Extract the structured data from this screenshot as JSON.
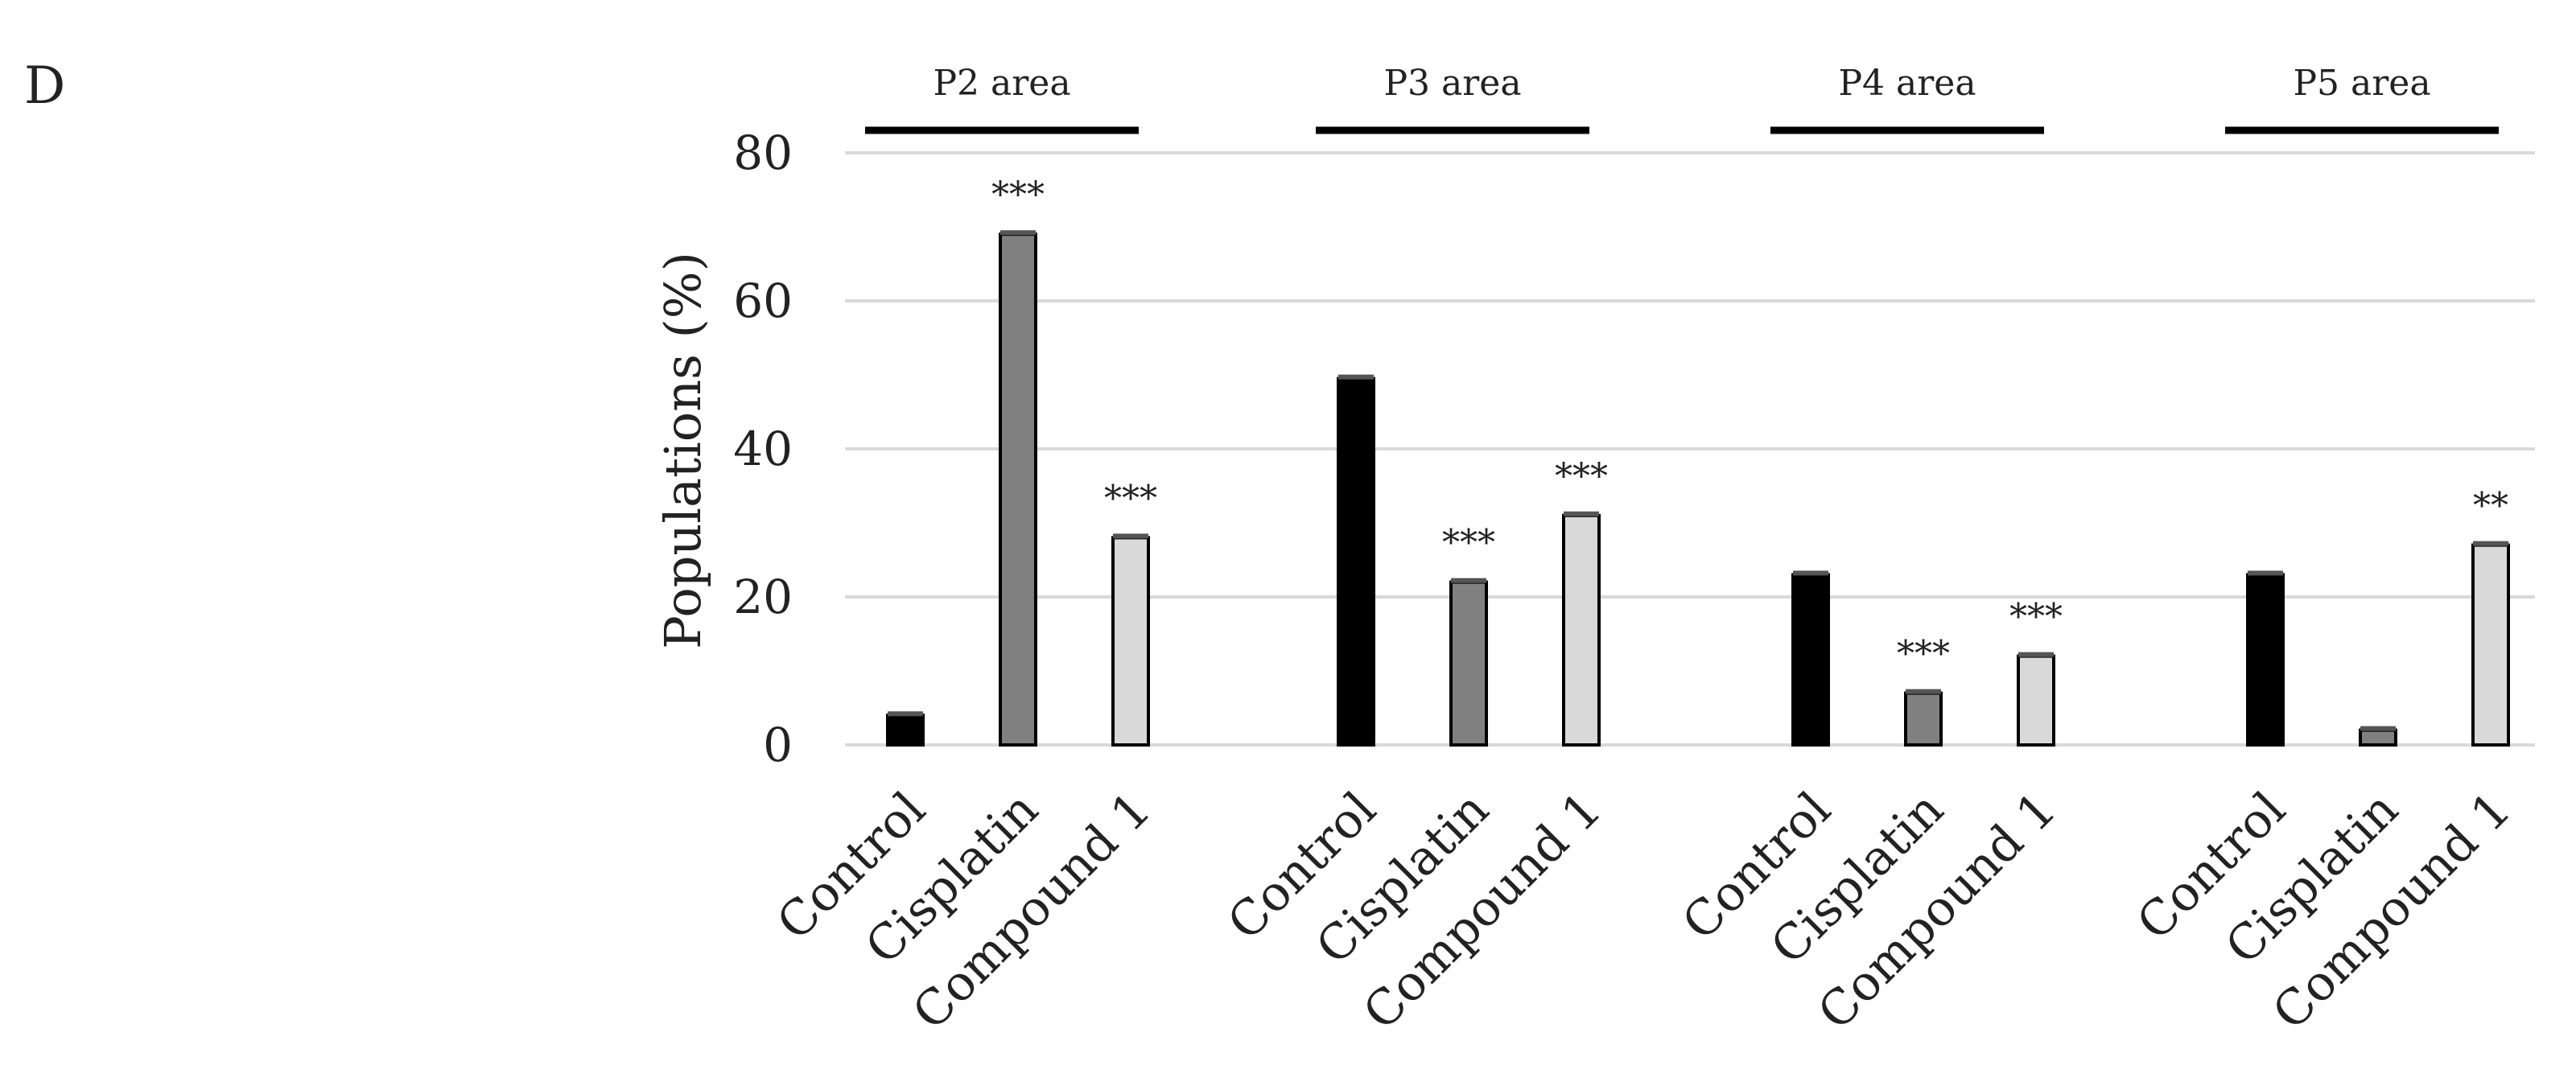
{
  "panel_letter": "D",
  "chart_data": {
    "type": "bar",
    "title": "",
    "xlabel": "",
    "ylabel": "Populations (%)",
    "ylim": [
      0,
      80
    ],
    "yticks": [
      0,
      20,
      40,
      60,
      80
    ],
    "grid": true,
    "groups": [
      {
        "label": "P2 area",
        "bars": [
          {
            "category": "Control",
            "value": 4,
            "significance": ""
          },
          {
            "category": "Cisplatin",
            "value": 69,
            "significance": "***"
          },
          {
            "category": "Compound 1",
            "value": 28,
            "significance": "***"
          }
        ]
      },
      {
        "label": "P3 area",
        "bars": [
          {
            "category": "Control",
            "value": 49.5,
            "significance": ""
          },
          {
            "category": "Cisplatin",
            "value": 22,
            "significance": "***"
          },
          {
            "category": "Compound 1",
            "value": 31,
            "significance": "***"
          }
        ]
      },
      {
        "label": "P4 area",
        "bars": [
          {
            "category": "Control",
            "value": 23,
            "significance": ""
          },
          {
            "category": "Cisplatin",
            "value": 7,
            "significance": "***"
          },
          {
            "category": "Compound 1",
            "value": 12,
            "significance": "***"
          }
        ]
      },
      {
        "label": "P5 area",
        "bars": [
          {
            "category": "Control",
            "value": 23,
            "significance": ""
          },
          {
            "category": "Cisplatin",
            "value": 2,
            "significance": ""
          },
          {
            "category": "Compound 1",
            "value": 27,
            "significance": "**"
          }
        ]
      }
    ],
    "colors": {
      "Control": "#000000",
      "Cisplatin": "#808080",
      "Compound 1": "#d9d9d9",
      "gridline": "#d9d9d9",
      "outline": "#000000"
    }
  }
}
